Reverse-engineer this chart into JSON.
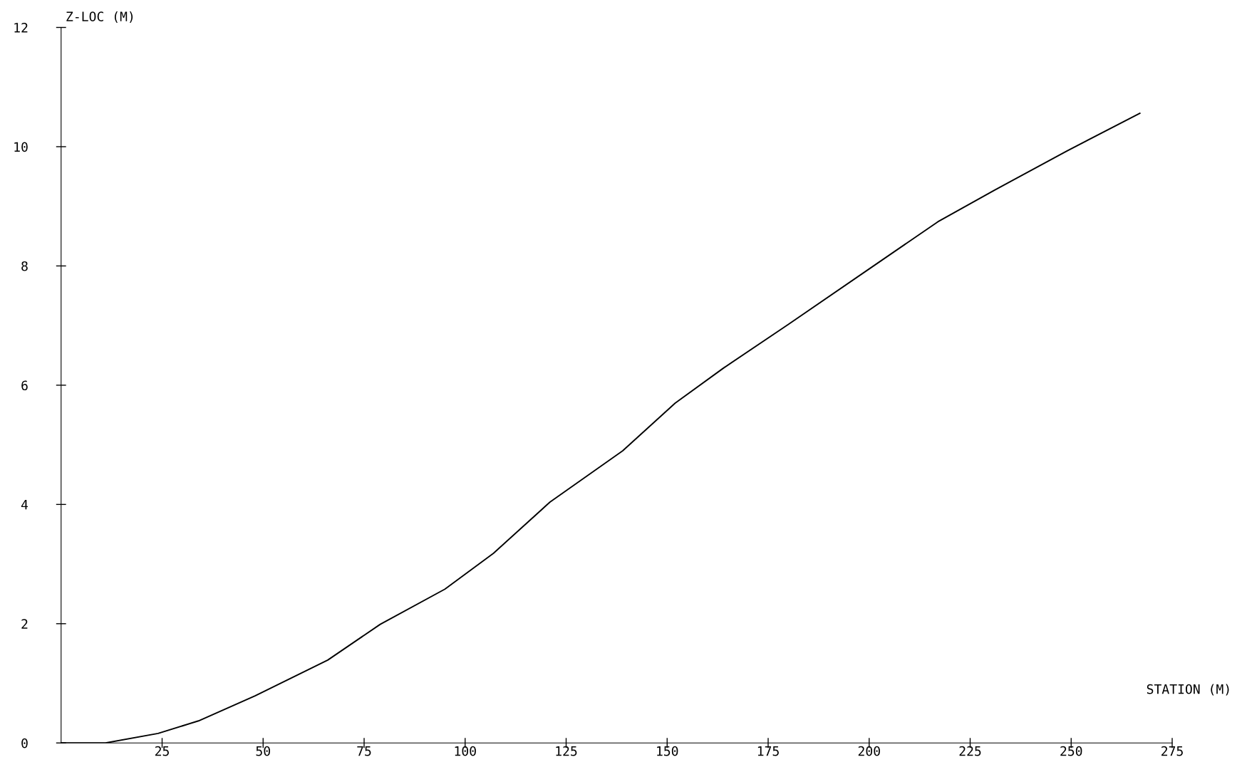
{
  "chart_data": {
    "type": "line",
    "xlabel": "STATION (M)",
    "ylabel": "Z-LOC (M)",
    "xlim": [
      0,
      275
    ],
    "xticks": [
      25,
      50,
      75,
      100,
      125,
      150,
      175,
      200,
      225,
      250,
      275
    ],
    "ylim": [
      0,
      12
    ],
    "yticks": [
      0,
      2,
      4,
      6,
      8,
      10,
      12
    ],
    "grid": false,
    "legend": false,
    "marker": "none",
    "line_style": "solid",
    "series": [
      {
        "color": "#000000",
        "x": [
          0,
          11,
          24,
          34,
          48,
          66,
          79,
          95,
          107,
          121,
          139,
          152,
          164,
          180,
          200,
          217,
          231,
          249,
          267
        ],
        "values": [
          0,
          0,
          0.16,
          0.37,
          0.79,
          1.39,
          1.99,
          2.58,
          3.18,
          4.04,
          4.9,
          5.7,
          6.29,
          7.02,
          7.95,
          8.74,
          9.27,
          9.93,
          10.56
        ]
      }
    ]
  }
}
